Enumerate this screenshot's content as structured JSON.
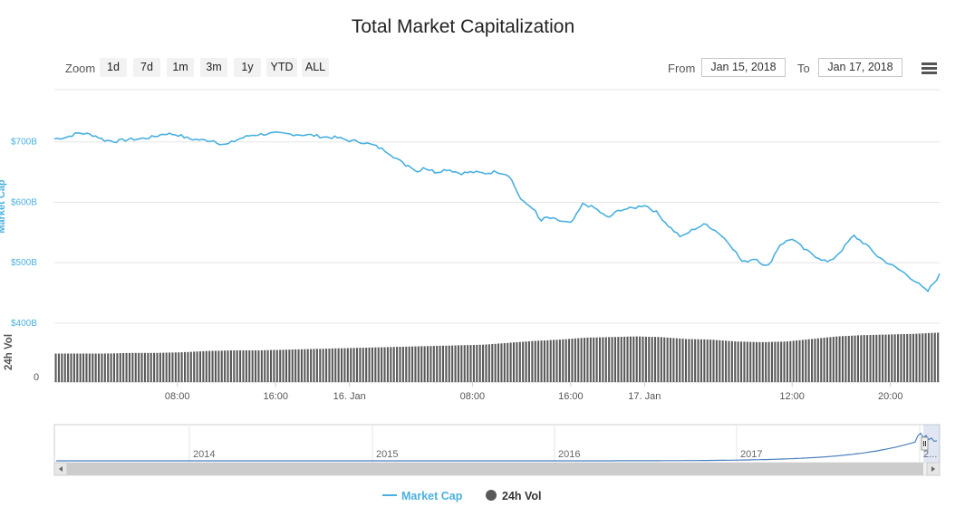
{
  "title": "Total Market Capitalization",
  "zoom": {
    "label": "Zoom",
    "buttons": [
      "1d",
      "7d",
      "1m",
      "3m",
      "1y",
      "YTD",
      "ALL"
    ]
  },
  "range": {
    "from_label": "From",
    "from_value": "Jan 15, 2018",
    "to_label": "To",
    "to_value": "Jan 17, 2018"
  },
  "menu_icon": "hamburger-menu-icon",
  "colors": {
    "market_cap": "#4ab0e0",
    "volume": "#595959",
    "grid": "#e6e6e6",
    "navigator_line": "#4a7fbf"
  },
  "chart_data": {
    "type": "line",
    "title": "Total Market Capitalization",
    "x_tick_labels": [
      "08:00",
      "16:00",
      "16. Jan",
      "08:00",
      "16:00",
      "17. Jan",
      "12:00",
      "20:00"
    ],
    "y_axis_market_cap": {
      "label": "Market Cap",
      "ticks": [
        "$700B",
        "$600B",
        "$500B",
        "$400B"
      ],
      "tick_values": [
        700,
        600,
        500,
        400
      ],
      "ylim": [
        400,
        770
      ]
    },
    "y_axis_volume": {
      "label": "24h Vol",
      "ticks": [
        "0"
      ]
    },
    "grid": true,
    "legend_position": "bottom-center",
    "series": [
      {
        "name": "Market Cap",
        "kind": "line",
        "x_hours": [
          0,
          1,
          2,
          3,
          3.5,
          4,
          5,
          6,
          7,
          8,
          9,
          10,
          11,
          12,
          13,
          13.5,
          14,
          15,
          16,
          17,
          18,
          19,
          20,
          21,
          22,
          23,
          24,
          25,
          26,
          27,
          28,
          28.5,
          29,
          29.5,
          30,
          31,
          32,
          33,
          34,
          35,
          36,
          37,
          38,
          39,
          39.5,
          40,
          41,
          42,
          42.5,
          43,
          44,
          45,
          46,
          47,
          48,
          49,
          50,
          51,
          52,
          53,
          54,
          55,
          56,
          57,
          58,
          59,
          60,
          61,
          62,
          63,
          64,
          65,
          66,
          66.5,
          67,
          68,
          69,
          70,
          71,
          72
        ],
        "values": [
          705,
          708,
          715,
          712,
          709,
          703,
          701,
          704,
          705,
          708,
          714,
          712,
          705,
          703,
          702,
          697,
          695,
          705,
          711,
          713,
          714,
          713,
          712,
          711,
          708,
          707,
          702,
          700,
          694,
          685,
          670,
          662,
          660,
          650,
          658,
          650,
          655,
          648,
          650,
          648,
          651,
          645,
          602,
          590,
          568,
          575,
          570,
          565,
          580,
          598,
          590,
          574,
          588,
          590,
          596,
          583,
          560,
          542,
          556,
          564,
          550,
          530,
          500,
          508,
          492,
          530,
          540,
          522,
          510,
          500,
          520,
          545,
          530,
          520,
          510,
          497,
          485,
          470,
          452,
          480
        ]
      },
      {
        "name": "24h Vol",
        "kind": "column",
        "relative_levels": [
          0.25,
          0.25,
          0.25,
          0.26,
          0.26,
          0.27,
          0.29,
          0.3,
          0.3,
          0.31,
          0.32,
          0.33,
          0.34,
          0.35,
          0.36,
          0.37,
          0.38,
          0.39,
          0.42,
          0.45,
          0.47,
          0.5,
          0.51,
          0.52,
          0.51,
          0.48,
          0.47,
          0.44,
          0.43,
          0.44,
          0.48,
          0.52,
          0.54,
          0.55,
          0.56,
          0.58
        ]
      }
    ],
    "navigator": {
      "year_labels": [
        "2014",
        "2015",
        "2016",
        "2017",
        "2..."
      ]
    }
  },
  "legend": {
    "market_cap": "Market Cap",
    "volume": "24h Vol"
  }
}
